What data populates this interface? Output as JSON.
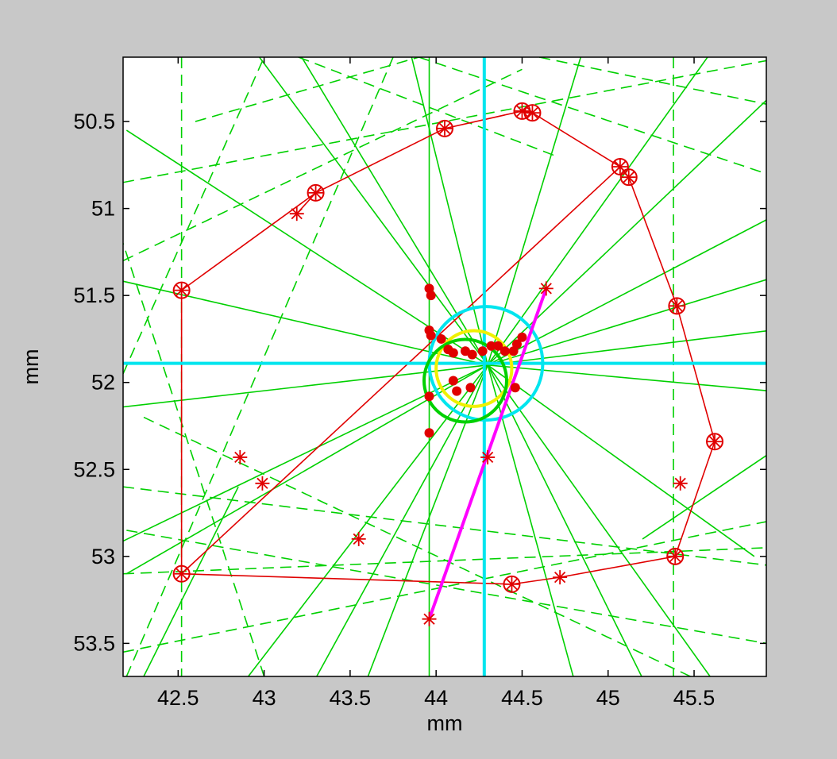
{
  "chart_data": {
    "type": "line",
    "xlabel": "mm",
    "ylabel": "mm",
    "xlim": [
      42.18,
      45.92
    ],
    "ylim": [
      53.69,
      50.13
    ],
    "y_reversed": true,
    "x_ticks": [
      42.5,
      43,
      43.5,
      44,
      44.5,
      45,
      45.5
    ],
    "x_tick_labels": [
      "42.5",
      "43",
      "43.5",
      "44",
      "44.5",
      "45",
      "45.5"
    ],
    "y_ticks": [
      50.5,
      51,
      51.5,
      52,
      52.5,
      53,
      53.5
    ],
    "y_tick_labels": [
      "50.5",
      "51",
      "51.5",
      "52",
      "52.5",
      "53",
      "53.5"
    ],
    "grid": false,
    "colors": {
      "background": "#c8c8c8",
      "axes_bg": "#ffffff",
      "hull": "#e00000",
      "markers": "#e00000",
      "rays": "#00d000",
      "crosshair": "#00e5ee",
      "circle_outer": "#00e5ee",
      "circle_yellow": "#f0f000",
      "circle_green": "#00d000",
      "segment": "#ff00ff"
    },
    "hull_polygon": [
      [
        42.52,
        51.47
      ],
      [
        43.3,
        50.91
      ],
      [
        44.05,
        50.54
      ],
      [
        44.5,
        50.44
      ],
      [
        44.56,
        50.45
      ],
      [
        45.07,
        50.76
      ],
      [
        45.12,
        50.82
      ],
      [
        45.4,
        51.56
      ],
      [
        45.62,
        52.34
      ],
      [
        45.39,
        53.0
      ],
      [
        44.72,
        53.12
      ],
      [
        44.44,
        53.16
      ],
      [
        42.52,
        53.1
      ],
      [
        42.52,
        51.47
      ]
    ],
    "diagonal_lines": [
      [
        [
          42.52,
          53.1
        ],
        [
          45.07,
          50.76
        ]
      ],
      [
        [
          43.3,
          50.91
        ],
        [
          43.19,
          51.03
        ]
      ]
    ],
    "magenta_segment": [
      [
        43.96,
        53.36
      ],
      [
        44.64,
        51.46
      ]
    ],
    "crosshair": {
      "x": 44.28,
      "y": 51.89
    },
    "circles": [
      {
        "name": "outer",
        "cx": 44.29,
        "cy": 51.89,
        "r": 0.33
      },
      {
        "name": "yellow",
        "cx": 44.22,
        "cy": 51.92,
        "r": 0.22
      },
      {
        "name": "green",
        "cx": 44.17,
        "cy": 51.99,
        "r": 0.24
      }
    ],
    "circled_markers": [
      [
        42.52,
        51.47
      ],
      [
        43.3,
        50.91
      ],
      [
        44.05,
        50.54
      ],
      [
        44.5,
        50.44
      ],
      [
        44.56,
        50.45
      ],
      [
        45.07,
        50.76
      ],
      [
        45.12,
        50.82
      ],
      [
        45.4,
        51.56
      ],
      [
        45.62,
        52.34
      ],
      [
        45.39,
        53.0
      ],
      [
        44.44,
        53.16
      ],
      [
        42.52,
        53.1
      ]
    ],
    "star_markers": [
      [
        43.19,
        51.03
      ],
      [
        42.86,
        52.43
      ],
      [
        42.99,
        52.58
      ],
      [
        43.55,
        52.9
      ],
      [
        44.72,
        53.12
      ],
      [
        45.42,
        52.58
      ],
      [
        44.3,
        52.43
      ],
      [
        43.96,
        53.36
      ],
      [
        44.64,
        51.46
      ]
    ],
    "cluster_points": [
      [
        43.96,
        51.46
      ],
      [
        43.97,
        51.5
      ],
      [
        43.96,
        51.7
      ],
      [
        43.97,
        51.73
      ],
      [
        44.03,
        51.75
      ],
      [
        44.07,
        51.81
      ],
      [
        44.1,
        51.83
      ],
      [
        44.17,
        51.82
      ],
      [
        44.21,
        51.84
      ],
      [
        44.27,
        51.82
      ],
      [
        44.32,
        51.79
      ],
      [
        44.36,
        51.79
      ],
      [
        44.4,
        51.82
      ],
      [
        44.47,
        51.78
      ],
      [
        44.5,
        51.74
      ],
      [
        44.45,
        51.82
      ],
      [
        43.96,
        52.08
      ],
      [
        44.1,
        51.99
      ],
      [
        44.12,
        52.05
      ],
      [
        44.2,
        52.03
      ],
      [
        44.46,
        52.03
      ],
      [
        43.96,
        52.29
      ]
    ],
    "solid_rays": [
      [
        [
          42.1,
          51.4
        ],
        [
          44.3,
          51.9
        ]
      ],
      [
        [
          44.3,
          51.9
        ],
        [
          45.95,
          51.4
        ]
      ],
      [
        [
          42.1,
          52.15
        ],
        [
          44.3,
          51.9
        ]
      ],
      [
        [
          44.3,
          51.9
        ],
        [
          45.95,
          52.05
        ]
      ],
      [
        [
          42.2,
          53.1
        ],
        [
          44.3,
          51.9
        ]
      ],
      [
        [
          44.3,
          51.9
        ],
        [
          45.95,
          51.7
        ]
      ],
      [
        [
          43.2,
          50.1
        ],
        [
          44.3,
          51.9
        ]
      ],
      [
        [
          44.3,
          51.9
        ],
        [
          45.2,
          53.7
        ]
      ],
      [
        [
          42.95,
          50.1
        ],
        [
          44.3,
          51.9
        ]
      ],
      [
        [
          44.3,
          51.9
        ],
        [
          45.6,
          53.7
        ]
      ],
      [
        [
          42.9,
          53.7
        ],
        [
          44.3,
          51.9
        ]
      ],
      [
        [
          44.3,
          51.9
        ],
        [
          45.95,
          50.35
        ]
      ],
      [
        [
          43.6,
          53.7
        ],
        [
          44.3,
          51.9
        ]
      ],
      [
        [
          44.3,
          51.9
        ],
        [
          44.85,
          50.1
        ]
      ],
      [
        [
          44.8,
          53.7
        ],
        [
          44.3,
          51.9
        ]
      ],
      [
        [
          43.85,
          50.1
        ],
        [
          44.3,
          51.9
        ]
      ],
      [
        [
          42.1,
          52.95
        ],
        [
          44.3,
          51.9
        ]
      ],
      [
        [
          44.3,
          51.9
        ],
        [
          45.95,
          51.05
        ]
      ],
      [
        [
          42.2,
          50.55
        ],
        [
          44.3,
          51.9
        ]
      ],
      [
        [
          44.3,
          51.9
        ],
        [
          45.85,
          53.0
        ]
      ],
      [
        [
          43.3,
          53.7
        ],
        [
          44.3,
          51.9
        ]
      ],
      [
        [
          44.3,
          51.9
        ],
        [
          45.6,
          50.1
        ]
      ],
      [
        [
          43.96,
          50.13
        ],
        [
          43.96,
          53.69
        ]
      ],
      [
        [
          42.3,
          53.69
        ],
        [
          42.85,
          52.6
        ]
      ],
      [
        [
          45.2,
          52.9
        ],
        [
          45.95,
          52.4
        ]
      ]
    ],
    "dashed_rays": [
      [
        [
          42.52,
          50.13
        ],
        [
          42.52,
          53.69
        ]
      ],
      [
        [
          45.38,
          50.13
        ],
        [
          45.38,
          53.69
        ]
      ],
      [
        [
          42.18,
          50.85
        ],
        [
          45.92,
          50.15
        ]
      ],
      [
        [
          42.18,
          51.3
        ],
        [
          44.5,
          50.2
        ]
      ],
      [
        [
          42.18,
          53.1
        ],
        [
          45.92,
          52.95
        ]
      ],
      [
        [
          42.18,
          53.55
        ],
        [
          45.92,
          52.8
        ]
      ],
      [
        [
          42.2,
          52.85
        ],
        [
          45.92,
          53.5
        ]
      ],
      [
        [
          42.18,
          52.6
        ],
        [
          45.92,
          53.05
        ]
      ],
      [
        [
          42.3,
          52.2
        ],
        [
          45.5,
          53.7
        ]
      ],
      [
        [
          43.9,
          50.13
        ],
        [
          45.92,
          50.8
        ]
      ],
      [
        [
          44.6,
          50.13
        ],
        [
          45.92,
          50.4
        ]
      ],
      [
        [
          42.18,
          51.95
        ],
        [
          43.0,
          50.13
        ]
      ],
      [
        [
          42.2,
          53.69
        ],
        [
          43.75,
          50.13
        ]
      ],
      [
        [
          43.0,
          53.69
        ],
        [
          42.18,
          51.2
        ]
      ],
      [
        [
          43.2,
          50.13
        ],
        [
          44.7,
          50.7
        ]
      ],
      [
        [
          42.6,
          50.5
        ],
        [
          43.9,
          50.13
        ]
      ]
    ]
  }
}
